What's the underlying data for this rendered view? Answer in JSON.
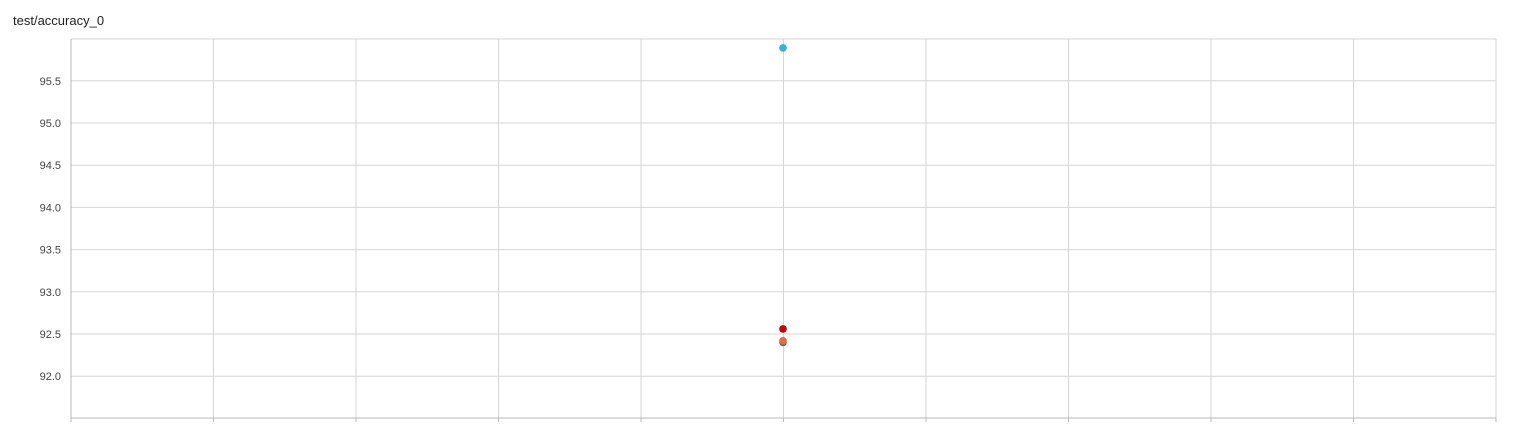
{
  "title": "test/accuracy_0",
  "chart_data": {
    "type": "scatter",
    "title": "test/accuracy_0",
    "xlabel": "",
    "ylabel": "",
    "yticks": [
      92.0,
      92.5,
      93.0,
      93.5,
      94.0,
      94.5,
      95.0,
      95.5
    ],
    "ytick_labels": [
      "92.0",
      "92.5",
      "93.0",
      "93.5",
      "94.0",
      "94.5",
      "95.0",
      "95.5"
    ],
    "ylim": [
      91.55,
      96.05
    ],
    "grid": true,
    "legend": "none",
    "series": [
      {
        "color": "#33aee8",
        "x": [
          0
        ],
        "y": [
          95.89
        ]
      },
      {
        "color": "#cc0000",
        "x": [
          0
        ],
        "y": [
          92.56
        ]
      },
      {
        "color": "#666666",
        "x": [
          0
        ],
        "y": [
          92.4
        ]
      },
      {
        "color": "#ee6644",
        "x": [
          0
        ],
        "y": [
          92.42
        ]
      }
    ]
  }
}
